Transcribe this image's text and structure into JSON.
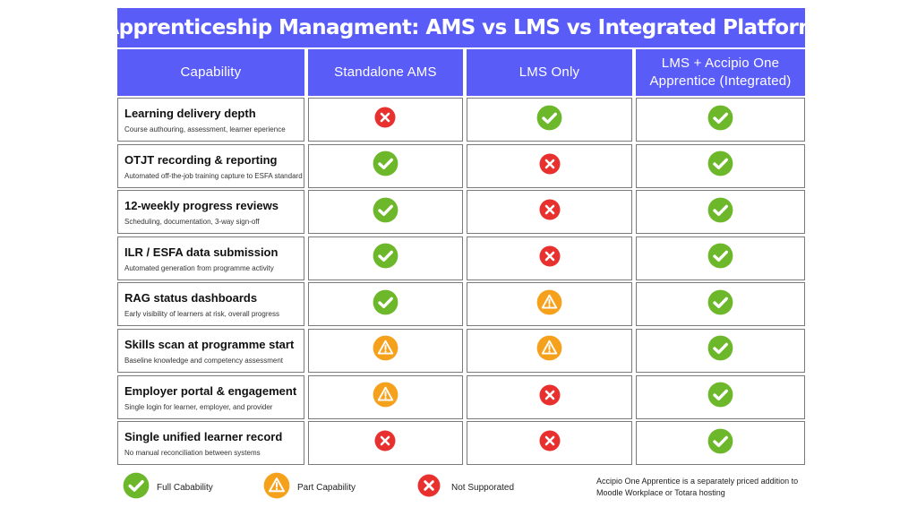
{
  "title": "Apprenticeship Managment: AMS vs LMS vs Integrated Platform",
  "headers": [
    "Capability",
    "Standalone AMS",
    "LMS Only",
    "LMS + Accipio One Apprentice (Integrated)"
  ],
  "rows": [
    {
      "title": "Learning delivery depth",
      "sub": "Course authouring, assessment, learner eperience",
      "values": [
        "no",
        "full",
        "full"
      ]
    },
    {
      "title": "OTJT recording & reporting",
      "sub": "Automated off-the-job training capture to ESFA standard",
      "values": [
        "full",
        "no",
        "full"
      ]
    },
    {
      "title": "12-weekly progress reviews",
      "sub": "Scheduling, documentation, 3-way sign-off",
      "values": [
        "full",
        "no",
        "full"
      ]
    },
    {
      "title": "ILR / ESFA data submission",
      "sub": "Automated generation from programme activity",
      "values": [
        "full",
        "no",
        "full"
      ]
    },
    {
      "title": "RAG status dashboards",
      "sub": "Early visibility of learners at risk, overall progress",
      "values": [
        "full",
        "part",
        "full"
      ]
    },
    {
      "title": "Skills scan at programme start",
      "sub": "Baseline knowledge and competency assessment",
      "values": [
        "part",
        "part",
        "full"
      ]
    },
    {
      "title": "Employer portal & engagement",
      "sub": "Single login for learner, employer, and provider",
      "values": [
        "part",
        "no",
        "full"
      ]
    },
    {
      "title": "Single unified learner record",
      "sub": "No manual reconciliation between systems",
      "values": [
        "no",
        "no",
        "full"
      ]
    }
  ],
  "legend": {
    "full": "Full Cabability",
    "part": "Part Capability",
    "no": "Not Supporated"
  },
  "note": "Accipio One Apprentice is a separately priced addition to Moodle Workplace or Totara hosting",
  "colors": {
    "header": "#5a5cf7",
    "full": "#6cb82a",
    "part": "#f5a11c",
    "no": "#e8312f"
  },
  "icons": {
    "full": "check-circle-icon",
    "part": "warning-triangle-icon",
    "no": "x-circle-icon"
  }
}
